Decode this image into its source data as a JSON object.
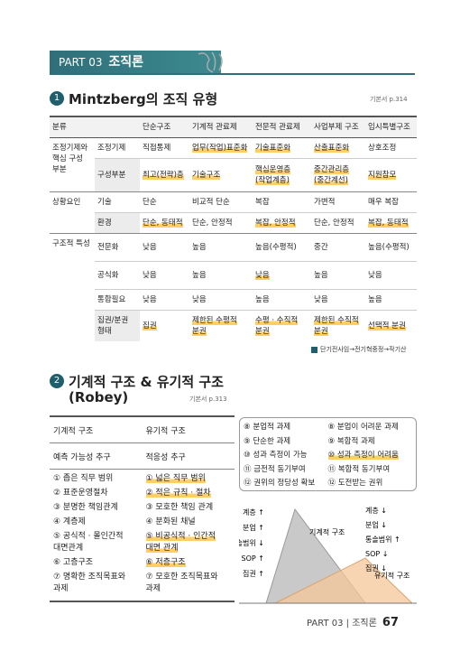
{
  "header": {
    "part": "PART 03",
    "title": "조직론"
  },
  "mintzberg": {
    "number": "1",
    "title": "Mintzberg의 조직 유형",
    "ref": "기본서 p.314",
    "header": [
      "분류",
      "단순구조",
      "기계적 관료제",
      "전문적 관료제",
      "사업부제 구조",
      "임시특별구조"
    ],
    "groups": [
      {
        "label": "조정기제와 핵심 구성 부분",
        "rows": [
          {
            "label": "조정기제",
            "cells": [
              "직접통제",
              "업무(작업)표준화",
              "기술표준화",
              "산출표준화",
              "상호조정"
            ]
          },
          {
            "label": "구성부분",
            "cells": [
              "최고(전략)층",
              "기술구조",
              "핵심운영층\n(작업계층)",
              "중간관리층\n(중간계선)",
              "지원참모"
            ]
          }
        ]
      },
      {
        "label": "상황요인",
        "rows": [
          {
            "label": "기술",
            "cells": [
              "단순",
              "비교적 단순",
              "복잡",
              "가변적",
              "매우 복잡"
            ]
          },
          {
            "label": "환경",
            "cells": [
              "단순, 동태적",
              "단순, 안정적",
              "복잡, 안정적",
              "단순, 안정적",
              "복잡, 동태적"
            ]
          }
        ]
      },
      {
        "label": "구조적 특성",
        "rows": [
          {
            "label": "전문화",
            "cells": [
              "낮음",
              "높음",
              "높음(수평적)",
              "중간",
              "높음(수평적)"
            ]
          },
          {
            "label": "공식화",
            "cells": [
              "낮음",
              "높음",
              "낮음",
              "높음",
              "낮음"
            ]
          },
          {
            "label": "통합필요",
            "cells": [
              "낮음",
              "낮음",
              "높음",
              "낮음",
              "높음"
            ]
          },
          {
            "label": "집권/분권\n형태",
            "cells": [
              "집권",
              "제한된 수평적\n분권",
              "수평 · 수직적\n분권",
              "제한된 수직적\n분권",
              "선택적 분권"
            ]
          }
        ]
      }
    ],
    "note": "단기전사임→전기혁중정→작기산"
  },
  "robey": {
    "number": "2",
    "title": "기계적 구조 & 유기적 구조",
    "subtitle": "(Robey)",
    "ref": "기본서 p.313",
    "headers": [
      "기계적 구조",
      "유기적 구조"
    ],
    "goals": [
      "예측 가능성 추구",
      "적응성 추구"
    ],
    "mechanistic": [
      "① 좁은 직무 범위",
      "② 표준운영절차",
      "③ 분명한 책임관계",
      "④ 계층제",
      "⑤ 공식적 · 몰인간적\n대면관계",
      "⑥ 고층구조",
      "⑦ 명확한 조직목표와\n과제"
    ],
    "organic": [
      "① 넓은 직무 범위",
      "② 적은 규칙 · 절차",
      "③ 모호한 책임 관계",
      "④ 분화된 채널",
      "⑤ 비공식적 · 인간적\n대면 관계",
      "⑥ 저층구조",
      "⑦ 모호한 조직목표와\n과제"
    ],
    "extra_mechanistic": [
      "⑧ 분업적 과제",
      "⑨ 단순한 과제",
      "⑩ 성과 측정이 가능",
      "⑪ 금전적 동기부여",
      "⑫ 권위의 정당성 확보"
    ],
    "extra_organic": [
      "⑧ 분업이 어려운 과제",
      "⑨ 복합적 과제",
      "⑩ 성과 측정이 어려움",
      "⑪ 복합적 동기부여",
      "⑫ 도전받는 권위"
    ],
    "diagram": {
      "left_labels": [
        "계층 ↑",
        "분업 ↑",
        "통솔범위 ↓",
        "SOP ↑",
        "집권 ↑"
      ],
      "left_name": "기계적 구조",
      "right_labels": [
        "계층 ↓",
        "분업 ↓",
        "통솔범위 ↑",
        "SOP ↓",
        "집권 ↓"
      ],
      "right_name": "유기적 구조"
    }
  },
  "footer": {
    "part": "PART 03",
    "title": "조직론",
    "page": "67"
  }
}
